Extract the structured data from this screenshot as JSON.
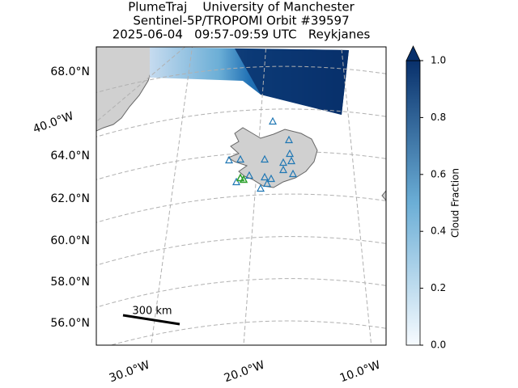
{
  "header": {
    "title_lines": [
      "PlumeTraj    University of Manchester",
      "Sentinel-5P/TROPOMI Orbit #39597",
      "2025-06-04   09:57-09:59 UTC   Reykjanes"
    ]
  },
  "map": {
    "lat_labels": [
      "68.0°N",
      "64.0°N",
      "62.0°N",
      "60.0°N",
      "58.0°N",
      "56.0°N"
    ],
    "lon_labels": [
      "40.0°W",
      "30.0°W",
      "20.0°W",
      "10.0°W"
    ],
    "scale_bar": "300 km"
  },
  "colorbar": {
    "label": "Cloud Fraction",
    "lim": [
      0,
      1
    ],
    "colors": [
      "#f7fbff",
      "#6baed6",
      "#08306b"
    ],
    "ticks": [
      {
        "value": 0,
        "label": "0.0"
      },
      {
        "value": 0.2,
        "label": "0.2"
      },
      {
        "value": 0.4,
        "label": "0.4"
      },
      {
        "value": 0.6,
        "label": "0.6"
      },
      {
        "value": 0.8,
        "label": "0.8"
      },
      {
        "value": 1,
        "label": "1.0"
      }
    ]
  }
}
